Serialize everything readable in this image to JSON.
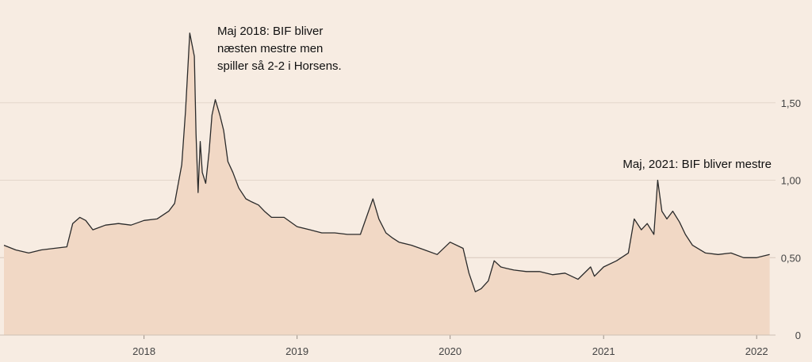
{
  "colors": {
    "background": "#f7ece2",
    "area_fill": "#f1d8c5",
    "line": "#2a2a2a",
    "grid": "#e3d6cb",
    "baseline": "#d8c7bb"
  },
  "chart_data": {
    "type": "area",
    "title": "",
    "xlabel": "",
    "ylabel": "",
    "xlim": [
      "2017-02-01",
      "2022-02-15"
    ],
    "ylim": [
      0,
      2.0
    ],
    "x_ticks": [
      "2018",
      "2019",
      "2020",
      "2021",
      "2022"
    ],
    "y_ticks": [
      "0",
      "0,50",
      "1,00",
      "1,50"
    ],
    "y_axis_side": "right",
    "grid": true,
    "annotations": [
      {
        "lines": [
          "Maj 2018: BIF bliver",
          "næsten mestre men",
          "spiller så 2-2 i Horsens."
        ],
        "date": "2018-05-01"
      },
      {
        "lines": [
          "Maj, 2021: BIF bliver mestre"
        ],
        "date": "2021-05-01"
      }
    ],
    "series": [
      {
        "x": [
          "2017-02-01",
          "2017-03-01",
          "2017-04-01",
          "2017-05-01",
          "2017-06-01",
          "2017-07-01",
          "2017-07-15",
          "2017-08-01",
          "2017-08-15",
          "2017-09-01",
          "2017-10-01",
          "2017-11-01",
          "2017-12-01",
          "2018-01-01",
          "2018-02-01",
          "2018-03-01",
          "2018-03-15",
          "2018-04-01",
          "2018-04-10",
          "2018-04-20",
          "2018-05-01",
          "2018-05-05",
          "2018-05-10",
          "2018-05-15",
          "2018-05-20",
          "2018-05-28",
          "2018-06-05",
          "2018-06-12",
          "2018-06-20",
          "2018-07-01",
          "2018-07-10",
          "2018-07-20",
          "2018-08-01",
          "2018-08-15",
          "2018-09-01",
          "2018-09-15",
          "2018-10-01",
          "2018-10-15",
          "2018-11-01",
          "2018-12-01",
          "2019-01-01",
          "2019-02-01",
          "2019-03-01",
          "2019-04-01",
          "2019-05-01",
          "2019-06-01",
          "2019-07-01",
          "2019-07-15",
          "2019-08-01",
          "2019-08-15",
          "2019-09-01",
          "2019-10-01",
          "2019-11-01",
          "2019-12-01",
          "2020-01-01",
          "2020-02-01",
          "2020-02-15",
          "2020-03-01",
          "2020-03-15",
          "2020-04-01",
          "2020-04-15",
          "2020-05-01",
          "2020-05-15",
          "2020-06-01",
          "2020-07-01",
          "2020-08-01",
          "2020-09-01",
          "2020-10-01",
          "2020-11-01",
          "2020-12-01",
          "2020-12-10",
          "2021-01-01",
          "2021-02-01",
          "2021-03-01",
          "2021-03-15",
          "2021-04-01",
          "2021-04-15",
          "2021-05-01",
          "2021-05-10",
          "2021-05-20",
          "2021-06-01",
          "2021-06-15",
          "2021-07-01",
          "2021-07-15",
          "2021-08-01",
          "2021-09-01",
          "2021-10-01",
          "2021-11-01",
          "2021-12-01",
          "2022-01-01",
          "2022-02-01"
        ],
        "y": [
          0.58,
          0.55,
          0.53,
          0.55,
          0.56,
          0.57,
          0.72,
          0.76,
          0.74,
          0.68,
          0.71,
          0.72,
          0.71,
          0.74,
          0.75,
          0.8,
          0.85,
          1.1,
          1.45,
          1.95,
          1.8,
          1.3,
          0.92,
          1.25,
          1.05,
          0.98,
          1.18,
          1.42,
          1.52,
          1.42,
          1.32,
          1.12,
          1.05,
          0.95,
          0.88,
          0.86,
          0.84,
          0.8,
          0.76,
          0.76,
          0.7,
          0.68,
          0.66,
          0.66,
          0.65,
          0.65,
          0.88,
          0.75,
          0.66,
          0.63,
          0.6,
          0.58,
          0.55,
          0.52,
          0.6,
          0.56,
          0.4,
          0.28,
          0.3,
          0.35,
          0.48,
          0.44,
          0.43,
          0.42,
          0.41,
          0.41,
          0.39,
          0.4,
          0.36,
          0.44,
          0.38,
          0.44,
          0.48,
          0.53,
          0.75,
          0.68,
          0.72,
          0.65,
          1.0,
          0.8,
          0.75,
          0.8,
          0.73,
          0.65,
          0.58,
          0.53,
          0.52,
          0.53,
          0.5,
          0.5,
          0.52
        ]
      }
    ]
  }
}
